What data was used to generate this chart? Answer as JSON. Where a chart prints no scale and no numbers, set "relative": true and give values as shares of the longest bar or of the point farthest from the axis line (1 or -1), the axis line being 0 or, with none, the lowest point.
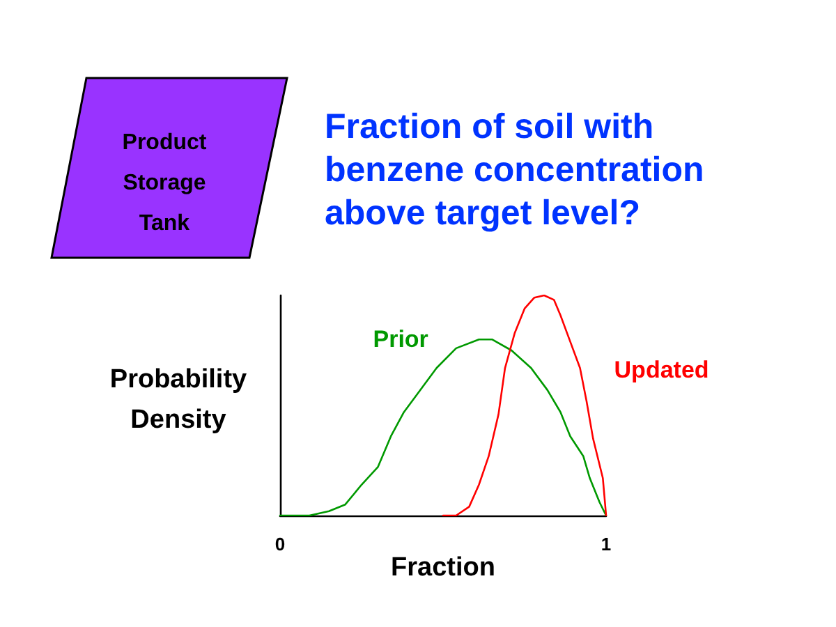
{
  "chart_data": {
    "type": "line",
    "title": "Fraction of soil with benzene concentration above target level?",
    "xlabel": "Fraction",
    "ylabel": "Probability Density",
    "annotations": [
      "Product Storage Tank"
    ],
    "relative": true,
    "legend": false,
    "grid": false,
    "marker": "none",
    "line_style": "solid",
    "xlim": [
      0,
      1
    ],
    "xticks": [
      0,
      1
    ],
    "series": [
      {
        "name": "Prior",
        "color": "#009900",
        "x": [
          0,
          0.09,
          0.15,
          0.2,
          0.25,
          0.3,
          0.34,
          0.38,
          0.42,
          0.48,
          0.54,
          0.61,
          0.65,
          0.71,
          0.77,
          0.82,
          0.86,
          0.89,
          0.93,
          0.95,
          0.98,
          1
        ],
        "values": [
          0,
          0,
          0.02,
          0.05,
          0.14,
          0.22,
          0.36,
          0.47,
          0.55,
          0.67,
          0.76,
          0.8,
          0.8,
          0.75,
          0.67,
          0.57,
          0.47,
          0.36,
          0.27,
          0.17,
          0.06,
          0
        ]
      },
      {
        "name": "Updated",
        "color": "#ff0000",
        "x": [
          0.5,
          0.54,
          0.58,
          0.61,
          0.64,
          0.67,
          0.69,
          0.72,
          0.75,
          0.78,
          0.81,
          0.84,
          0.86,
          0.89,
          0.92,
          0.94,
          0.96,
          0.99,
          1
        ],
        "values": [
          0,
          0,
          0.04,
          0.14,
          0.27,
          0.46,
          0.67,
          0.83,
          0.94,
          0.99,
          1,
          0.98,
          0.91,
          0.79,
          0.67,
          0.52,
          0.35,
          0.17,
          0
        ]
      }
    ]
  }
}
